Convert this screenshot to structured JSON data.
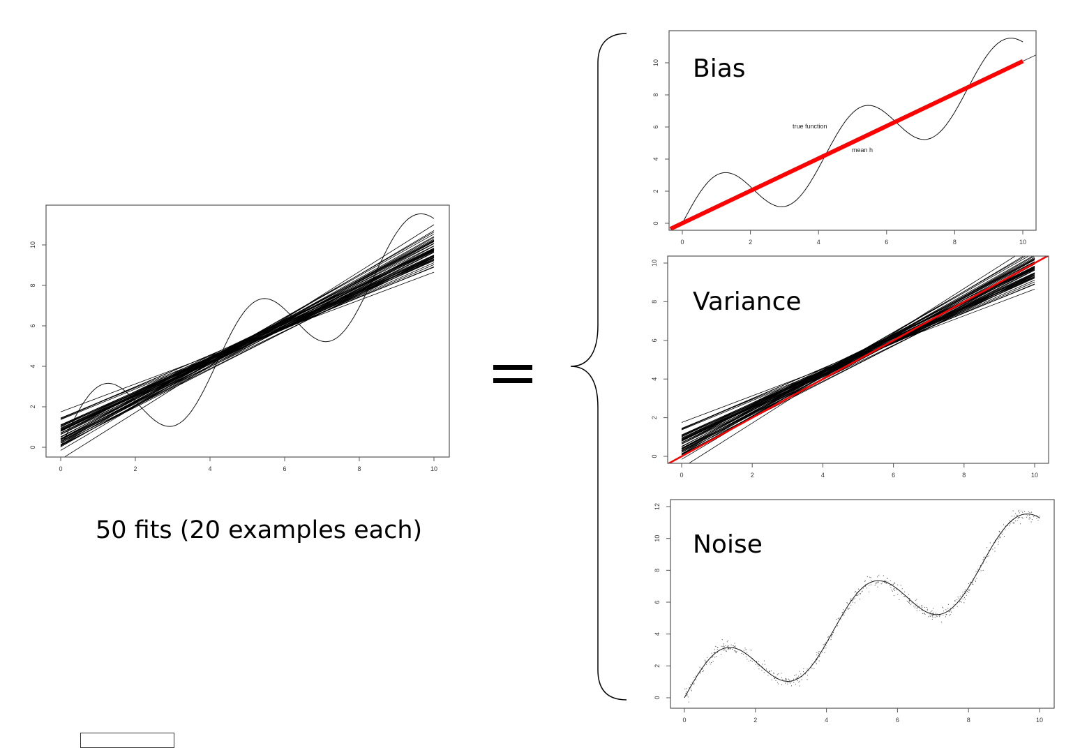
{
  "caption": "50 fits (20 examples each)",
  "equals_sign": "=",
  "colors": {
    "fit_line": "#000000",
    "mean_line": "#ff0000",
    "axis": "#555555",
    "noise_point": "#444444"
  },
  "true_function": "x + 2*sin(1.5*x)",
  "chart_data": [
    {
      "id": "fits",
      "type": "line",
      "title": "",
      "xlabel": "",
      "ylabel": "",
      "xlim": [
        0,
        10.4
      ],
      "ylim": [
        -0.4,
        11.7
      ],
      "xticks": [
        "0",
        "2",
        "4",
        "6",
        "8",
        "10"
      ],
      "yticks": [
        "0",
        "2",
        "4",
        "6",
        "8",
        "10"
      ],
      "series": [
        {
          "name": "true function",
          "kind": "curve",
          "x_range": [
            0,
            10
          ]
        },
        {
          "name": "50 linear fits",
          "kind": "lines",
          "count": 50,
          "intercept_range": [
            -0.6,
            1.8
          ],
          "endpoint_at_10_range": [
            8.6,
            11.0
          ]
        }
      ],
      "grid": false,
      "legend": "none"
    },
    {
      "id": "bias",
      "type": "line",
      "title": "Bias",
      "xlim": [
        -0.4,
        10.4
      ],
      "ylim": [
        -0.4,
        12.0
      ],
      "xticks": [
        "0",
        "2",
        "4",
        "6",
        "8",
        "10"
      ],
      "yticks": [
        "0",
        "2",
        "4",
        "6",
        "8",
        "10"
      ],
      "annotations": [
        "true function",
        "mean h"
      ],
      "series": [
        {
          "name": "true function",
          "kind": "curve",
          "x_range": [
            0,
            10
          ]
        },
        {
          "name": "mean h",
          "kind": "line",
          "x": [
            -0.35,
            10
          ],
          "y": [
            -0.35,
            10.1
          ]
        }
      ],
      "grid": false,
      "legend": "none"
    },
    {
      "id": "variance",
      "type": "line",
      "title": "Variance",
      "xlim": [
        -0.4,
        10.4
      ],
      "ylim": [
        -0.4,
        10.4
      ],
      "xticks": [
        "0",
        "2",
        "4",
        "6",
        "8",
        "10"
      ],
      "yticks": [
        "0",
        "2",
        "4",
        "6",
        "8",
        "10"
      ],
      "series": [
        {
          "name": "50 linear fits",
          "kind": "lines",
          "count": 50,
          "intercept_range": [
            -0.6,
            1.8
          ],
          "endpoint_at_10_range": [
            8.6,
            11.0
          ]
        },
        {
          "name": "mean h",
          "kind": "line",
          "x": [
            -0.4,
            10.4
          ],
          "y": [
            -0.4,
            10.4
          ]
        }
      ],
      "grid": false,
      "legend": "none"
    },
    {
      "id": "noise",
      "type": "scatter",
      "title": "Noise",
      "xlim": [
        -0.4,
        10.4
      ],
      "ylim": [
        -0.6,
        12.4
      ],
      "xticks": [
        "0",
        "2",
        "4",
        "6",
        "8",
        "10"
      ],
      "yticks": [
        "0",
        "2",
        "4",
        "6",
        "8",
        "10",
        "12"
      ],
      "series": [
        {
          "name": "true function",
          "kind": "curve",
          "x_range": [
            0,
            10
          ]
        },
        {
          "name": "noisy samples",
          "kind": "points",
          "count": 600,
          "noise_sd": 0.2
        }
      ],
      "grid": false,
      "legend": "none"
    }
  ]
}
